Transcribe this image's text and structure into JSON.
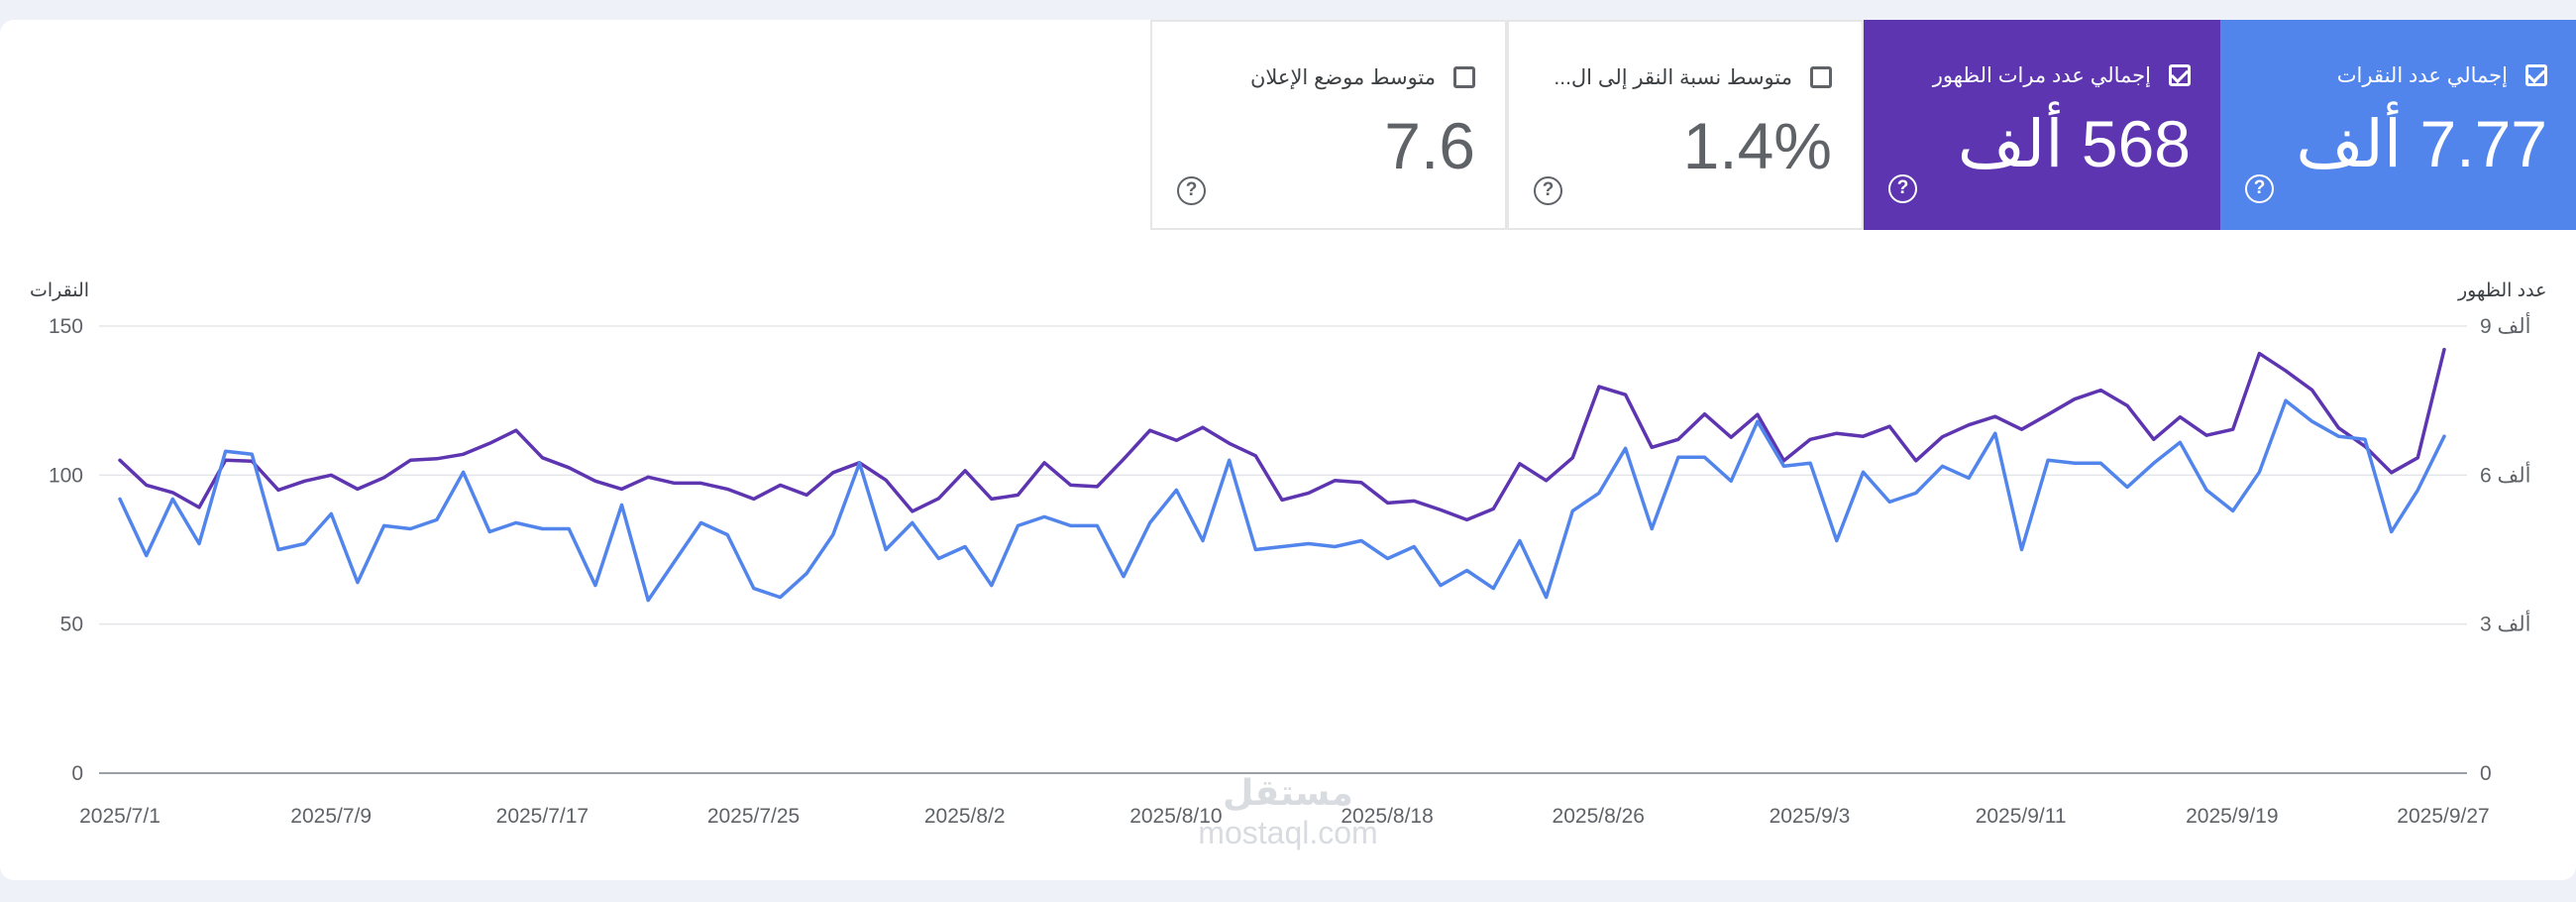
{
  "metrics": [
    {
      "key": "clicks",
      "label": "إجمالي عدد النقرات",
      "value": "7.77 ألف",
      "checked": true,
      "bg": "#5285ec"
    },
    {
      "key": "impressions",
      "label": "إجمالي عدد مرات الظهور",
      "value": "568 ألف",
      "checked": true,
      "bg": "#5e35b1"
    },
    {
      "key": "ctr",
      "label": "متوسط نسبة النقر إلى ال...",
      "value": "1.4%",
      "checked": false,
      "bg": "#ffffff"
    },
    {
      "key": "position",
      "label": "متوسط موضع الإعلان",
      "value": "7.6",
      "checked": false,
      "bg": "#ffffff"
    }
  ],
  "help_glyph": "?",
  "watermark": {
    "ar": "مستقل",
    "en": "mostaql.com"
  },
  "chart_data": {
    "type": "line",
    "left_axis": {
      "title": "النقرات",
      "ticks": [
        "0",
        "50",
        "100",
        "150"
      ],
      "range": [
        0,
        150
      ]
    },
    "right_axis": {
      "title": "عدد الظهور",
      "ticks": [
        "0",
        "3 ألف",
        "6 ألف",
        "9 ألف"
      ],
      "range": [
        0,
        9000
      ]
    },
    "x_labels": [
      "2025/7/1",
      "2025/7/9",
      "2025/7/17",
      "2025/7/25",
      "2025/8/2",
      "2025/8/10",
      "2025/8/18",
      "2025/8/26",
      "2025/9/3",
      "2025/9/11",
      "2025/9/19",
      "2025/9/27"
    ],
    "series": [
      {
        "key": "clicks",
        "axis": "left",
        "color": "#5285ec",
        "values": [
          92,
          73,
          92,
          77,
          108,
          107,
          75,
          77,
          87,
          64,
          83,
          82,
          85,
          101,
          81,
          84,
          82,
          82,
          63,
          90,
          58,
          71,
          84,
          80,
          62,
          59,
          67,
          80,
          104,
          75,
          84,
          72,
          76,
          63,
          83,
          86,
          83,
          83,
          66,
          84,
          95,
          78,
          105,
          75,
          76,
          77,
          76,
          78,
          72,
          76,
          63,
          68,
          62,
          78,
          59,
          88,
          94,
          109,
          82,
          106,
          106,
          98,
          118,
          103,
          104,
          78,
          101,
          91,
          94,
          103,
          99,
          114,
          75,
          105,
          104,
          104,
          96,
          104,
          111,
          95,
          88,
          101,
          125,
          118,
          113,
          112,
          81,
          95,
          113
        ]
      },
      {
        "key": "impressions",
        "axis": "right",
        "color": "#5e35b1",
        "values": [
          6300,
          5800,
          5650,
          5350,
          6300,
          6280,
          5700,
          5880,
          6000,
          5720,
          5950,
          6300,
          6330,
          6420,
          6640,
          6900,
          6350,
          6150,
          5880,
          5720,
          5960,
          5840,
          5840,
          5720,
          5520,
          5800,
          5600,
          6050,
          6250,
          5900,
          5270,
          5530,
          6090,
          5520,
          5600,
          6250,
          5800,
          5770,
          6320,
          6900,
          6700,
          6960,
          6640,
          6390,
          5500,
          5640,
          5890,
          5850,
          5440,
          5480,
          5300,
          5100,
          5320,
          6230,
          5890,
          6350,
          7780,
          7620,
          6560,
          6720,
          7230,
          6760,
          7220,
          6290,
          6720,
          6840,
          6780,
          6980,
          6290,
          6770,
          7010,
          7180,
          6920,
          7220,
          7530,
          7710,
          7400,
          6720,
          7170,
          6800,
          6920,
          8450,
          8100,
          7710,
          6950,
          6580,
          6050,
          6350,
          8530
        ]
      }
    ]
  }
}
